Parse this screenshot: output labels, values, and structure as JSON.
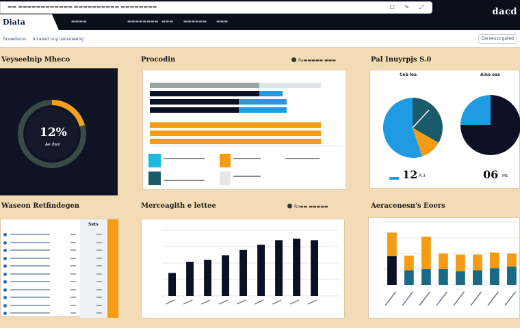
{
  "chrome": {
    "url_text": "▬▬ ▬▬▬▬▬▬▬▬▬▬▬▬ ▬▬▬▬▬▬▬▬▬▬ ▬▬▬▬▬▬▬▬",
    "brand": "Diata",
    "nav": [
      "▬▬▬▬",
      "▬▬▬▬▬▬▬▬",
      "▬▬▬",
      "▬▬▬▬▬▬",
      "▬▬▬"
    ],
    "logo": "dacd"
  },
  "filters": {
    "a": "Gcowdusns",
    "b": "Incaoad nuy usnsuwaing",
    "button": "Daraeuzs gated"
  },
  "panels": {
    "gauge": {
      "title": "Veyseelnip Mheco",
      "value": "12%",
      "label": "Ae dwn"
    },
    "bars": {
      "title": "Procodin",
      "tag": "Ra▬▬▬▬▬ ▬▬▬"
    },
    "pies": {
      "title": "Pal Inuyrpjs S.0",
      "left_top": "Ceb lea",
      "right_top": "Aine oas",
      "left_value": "12",
      "left_unit": "R.3",
      "right_value": "06",
      "right_unit": "Ms"
    },
    "table": {
      "title": "Waseon Retfindegen",
      "head_a": "Sets"
    },
    "bar_chart": {
      "title": "Merceagith e lettee",
      "tag": "Rn▬▬ ▬▬▬▬▬"
    },
    "stacked": {
      "title": "Aeracenesn's Eoers"
    }
  },
  "colors": {
    "navy": "#0b1024",
    "sky": "#1e9be2",
    "amber": "#f59c14",
    "teal": "#1a5a6b",
    "gray": "#d8d8d8"
  },
  "chart_data": [
    {
      "type": "bar",
      "categories": [
        "",
        "",
        "",
        "",
        "",
        "",
        "",
        "",
        "",
        ""
      ],
      "values": [
        35,
        52,
        55,
        62,
        70,
        78,
        85,
        87,
        85,
        0
      ],
      "ylim": [
        0,
        100
      ]
    },
    {
      "type": "bar",
      "stacked": true,
      "categories": [
        "",
        "",
        "",
        "",
        "",
        "",
        "",
        ""
      ],
      "series": [
        {
          "values": [
            55,
            28,
            30,
            30,
            26,
            28,
            32,
            35
          ]
        },
        {
          "values": [
            45,
            28,
            62,
            30,
            32,
            30,
            30,
            25
          ]
        }
      ],
      "ylim": [
        0,
        120
      ]
    }
  ]
}
